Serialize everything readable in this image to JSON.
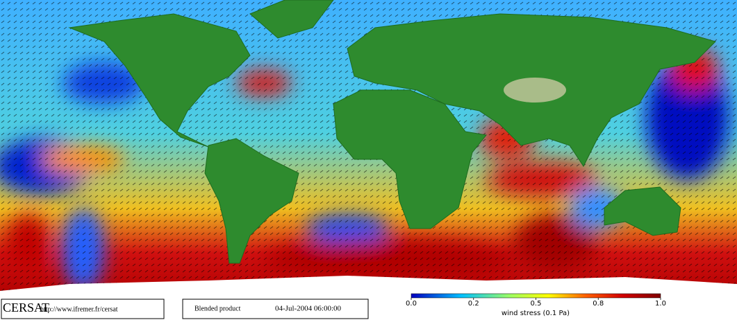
{
  "footer": {
    "logo": "CERSAT",
    "url": "http://www.ifremer.fr/cersat",
    "product": "Blended product",
    "timestamp": "04-Jul-2004 06:00:00"
  },
  "colorbar": {
    "ticks": [
      "0.0",
      "0.2",
      "0.5",
      "0.8",
      "1.0"
    ],
    "label": "wind stress (0.1 Pa)"
  }
}
